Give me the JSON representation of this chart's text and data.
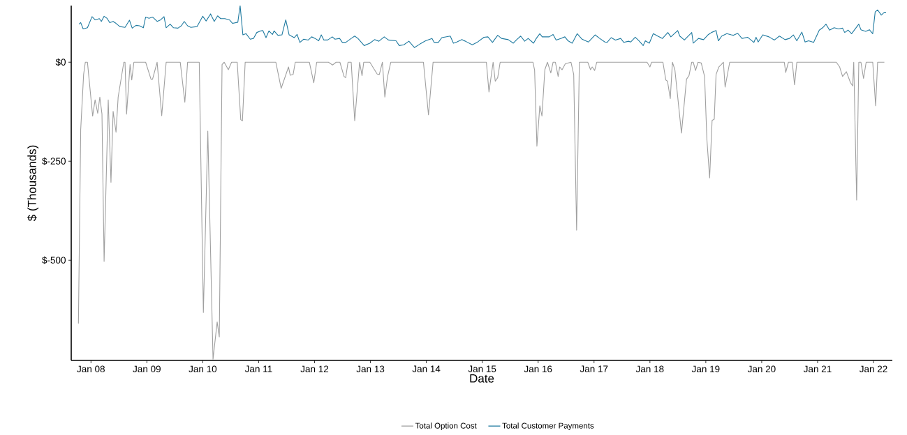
{
  "chart_data": {
    "type": "line",
    "xlabel": "Date",
    "ylabel": "$ (Thousands)",
    "legend": "bottom",
    "xlim": [
      "2007-08-25",
      "2022-05-04"
    ],
    "ylim": [
      -753,
      143
    ],
    "xticks": [
      {
        "value": "2008-01-01",
        "label": "Jan 08"
      },
      {
        "value": "2009-01-01",
        "label": "Jan 09"
      },
      {
        "value": "2010-01-01",
        "label": "Jan 10"
      },
      {
        "value": "2011-01-01",
        "label": "Jan 11"
      },
      {
        "value": "2012-01-01",
        "label": "Jan 12"
      },
      {
        "value": "2013-01-01",
        "label": "Jan 13"
      },
      {
        "value": "2014-01-01",
        "label": "Jan 14"
      },
      {
        "value": "2015-01-01",
        "label": "Jan 15"
      },
      {
        "value": "2016-01-01",
        "label": "Jan 16"
      },
      {
        "value": "2017-01-01",
        "label": "Jan 17"
      },
      {
        "value": "2018-01-01",
        "label": "Jan 18"
      },
      {
        "value": "2019-01-01",
        "label": "Jan 19"
      },
      {
        "value": "2020-01-01",
        "label": "Jan 20"
      },
      {
        "value": "2021-01-01",
        "label": "Jan 21"
      },
      {
        "value": "2022-01-01",
        "label": "Jan 22"
      }
    ],
    "yticks": [
      {
        "value": 0,
        "label": "$0"
      },
      {
        "value": -250,
        "label": "$-250"
      },
      {
        "value": -500,
        "label": "$-500"
      }
    ],
    "series": [
      {
        "name": "Total Option Cost",
        "color": "#a0a0a0",
        "x": [
          "2007-10-11",
          "2007-10-26",
          "2007-11-14",
          "2007-11-25",
          "2007-12-09",
          "2008-01-12",
          "2008-01-28",
          "2008-02-14",
          "2008-02-28",
          "2008-03-13",
          "2008-03-27",
          "2008-04-23",
          "2008-05-11",
          "2008-05-25",
          "2008-06-13",
          "2008-06-27",
          "2008-08-03",
          "2008-08-11",
          "2008-08-21",
          "2008-09-13",
          "2008-09-24",
          "2008-10-08",
          "2008-12-24",
          "2009-01-28",
          "2009-02-07",
          "2009-03-09",
          "2009-04-08",
          "2009-05-07",
          "2009-08-07",
          "2009-09-06",
          "2009-09-24",
          "2009-12-09",
          "2010-01-05",
          "2010-02-03",
          "2010-03-09",
          "2010-04-05",
          "2010-04-19",
          "2010-05-07",
          "2010-05-21",
          "2010-06-17",
          "2010-07-08",
          "2010-08-14",
          "2010-09-06",
          "2010-09-17",
          "2010-10-05",
          "2011-04-23",
          "2011-05-28",
          "2011-07-15",
          "2011-07-26",
          "2011-08-14",
          "2011-08-28",
          "2011-11-28",
          "2011-12-27",
          "2012-01-15",
          "2012-04-01",
          "2012-04-28",
          "2012-05-21",
          "2012-06-15",
          "2012-07-12",
          "2012-07-23",
          "2012-08-07",
          "2012-08-28",
          "2012-09-20",
          "2012-10-22",
          "2012-11-07",
          "2012-11-18",
          "2012-12-28",
          "2013-02-14",
          "2013-02-28",
          "2013-03-20",
          "2013-04-05",
          "2013-04-23",
          "2013-05-14",
          "2013-12-13",
          "2014-01-15",
          "2014-02-14",
          "2015-01-28",
          "2015-02-14",
          "2015-03-13",
          "2015-03-27",
          "2015-04-12",
          "2015-04-28",
          "2015-11-28",
          "2015-12-09",
          "2015-12-24",
          "2016-01-12",
          "2016-01-26",
          "2016-02-14",
          "2016-03-02",
          "2016-03-24",
          "2016-04-08",
          "2016-04-23",
          "2016-05-11",
          "2016-05-21",
          "2016-06-06",
          "2016-06-27",
          "2016-08-03",
          "2016-08-21",
          "2016-09-09",
          "2016-09-27",
          "2016-11-21",
          "2016-12-09",
          "2016-12-20",
          "2017-01-05",
          "2017-01-19",
          "2017-12-13",
          "2018-01-01",
          "2018-01-12",
          "2018-03-27",
          "2018-04-15",
          "2018-04-26",
          "2018-05-14",
          "2018-05-28",
          "2018-06-13",
          "2018-07-26",
          "2018-08-28",
          "2018-09-13",
          "2018-10-01",
          "2018-10-11",
          "2018-10-26",
          "2018-11-11",
          "2018-12-02",
          "2018-12-24",
          "2019-01-08",
          "2019-01-26",
          "2019-02-11",
          "2019-02-25",
          "2019-03-09",
          "2019-03-27",
          "2019-04-12",
          "2019-04-26",
          "2019-05-07",
          "2019-06-06",
          "2020-05-28",
          "2020-06-06",
          "2020-06-24",
          "2020-07-19",
          "2020-08-03",
          "2020-08-18",
          "2021-05-03",
          "2021-05-25",
          "2021-06-13",
          "2021-07-08",
          "2021-08-03",
          "2021-08-18",
          "2021-08-25",
          "2021-09-13",
          "2021-09-27",
          "2021-10-11",
          "2021-10-28",
          "2021-11-14",
          "2021-12-27",
          "2022-01-15",
          "2022-01-28",
          "2022-03-13"
        ],
        "values": [
          -660,
          -170,
          -31,
          0,
          0,
          -136,
          -95,
          -129,
          -88,
          -131,
          -503,
          -95,
          -303,
          -124,
          -177,
          -88,
          0,
          0,
          -131,
          -6,
          -45,
          0,
          0,
          -43,
          -43,
          0,
          -135,
          0,
          0,
          -101,
          0,
          0,
          -632,
          -174,
          -750,
          -656,
          -694,
          -6,
          0,
          -19,
          0,
          0,
          -145,
          -148,
          0,
          0,
          -66,
          -12,
          -33,
          -31,
          0,
          0,
          -52,
          0,
          0,
          -7,
          0,
          0,
          -36,
          -39,
          0,
          0,
          -148,
          0,
          -34,
          0,
          0,
          -30,
          -31,
          0,
          -88,
          -36,
          0,
          0,
          -133,
          0,
          0,
          -75,
          0,
          -48,
          -39,
          0,
          0,
          -20,
          -212,
          -110,
          -136,
          -19,
          0,
          -27,
          0,
          0,
          -36,
          -12,
          -19,
          -4,
          0,
          -31,
          -424,
          0,
          0,
          -19,
          -12,
          -21,
          0,
          0,
          -12,
          0,
          0,
          -45,
          -48,
          -92,
          0,
          -19,
          -179,
          -43,
          -34,
          0,
          0,
          -21,
          0,
          -2,
          -36,
          -195,
          -292,
          -147,
          -144,
          -31,
          -12,
          -6,
          0,
          -63,
          0,
          0,
          -26,
          0,
          0,
          -57,
          0,
          0,
          -12,
          -36,
          -24,
          -51,
          -60,
          0,
          -348,
          0,
          0,
          -41,
          0,
          0,
          -110,
          0,
          0
        ]
      },
      {
        "name": "Total Customer Payments",
        "color": "#1f7aa0",
        "x": [
          "2007-10-15",
          "2007-10-26",
          "2007-11-11",
          "2007-12-09",
          "2008-01-08",
          "2008-01-28",
          "2008-02-25",
          "2008-03-09",
          "2008-03-27",
          "2008-04-15",
          "2008-05-03",
          "2008-05-25",
          "2008-06-13",
          "2008-07-08",
          "2008-08-11",
          "2008-09-09",
          "2008-09-27",
          "2008-10-22",
          "2008-11-14",
          "2008-12-09",
          "2008-12-24",
          "2009-01-15",
          "2009-02-07",
          "2009-03-09",
          "2009-04-01",
          "2009-04-23",
          "2009-05-07",
          "2009-06-02",
          "2009-06-24",
          "2009-07-23",
          "2009-08-14",
          "2009-09-02",
          "2009-09-24",
          "2009-10-15",
          "2009-11-25",
          "2010-01-01",
          "2010-01-23",
          "2010-02-21",
          "2010-03-17",
          "2010-04-08",
          "2010-04-28",
          "2010-05-25",
          "2010-06-24",
          "2010-07-15",
          "2010-08-18",
          "2010-09-02",
          "2010-09-20",
          "2010-10-11",
          "2010-11-07",
          "2010-11-28",
          "2010-12-20",
          "2011-01-15",
          "2011-01-28",
          "2011-02-18",
          "2011-03-09",
          "2011-04-01",
          "2011-04-12",
          "2011-05-07",
          "2011-06-02",
          "2011-06-27",
          "2011-07-19",
          "2011-08-21",
          "2011-09-09",
          "2011-09-27",
          "2011-10-22",
          "2011-11-21",
          "2011-12-13",
          "2012-01-05",
          "2012-01-28",
          "2012-02-14",
          "2012-03-02",
          "2012-03-27",
          "2012-04-26",
          "2012-05-14",
          "2012-06-13",
          "2012-07-01",
          "2012-07-23",
          "2012-08-28",
          "2012-09-20",
          "2012-10-11",
          "2012-11-21",
          "2012-12-28",
          "2013-01-28",
          "2013-02-25",
          "2013-04-01",
          "2013-04-28",
          "2013-06-17",
          "2013-07-08",
          "2013-08-07",
          "2013-09-09",
          "2013-10-15",
          "2013-11-21",
          "2013-12-27",
          "2014-02-07",
          "2014-02-21",
          "2014-03-20",
          "2014-04-12",
          "2014-06-06",
          "2014-06-27",
          "2014-07-19",
          "2014-08-21",
          "2014-09-13",
          "2014-10-28",
          "2014-11-28",
          "2015-01-12",
          "2015-02-07",
          "2015-03-09",
          "2015-04-12",
          "2015-05-07",
          "2015-06-20",
          "2015-07-23",
          "2015-08-14",
          "2015-09-09",
          "2015-10-05",
          "2015-10-28",
          "2015-12-02",
          "2015-12-20",
          "2016-01-12",
          "2016-01-28",
          "2016-02-21",
          "2016-03-13",
          "2016-04-08",
          "2016-04-28",
          "2016-05-28",
          "2016-06-24",
          "2016-07-15",
          "2016-08-11",
          "2016-09-13",
          "2016-10-15",
          "2016-11-25",
          "2017-01-08",
          "2017-02-07",
          "2017-03-13",
          "2017-03-27",
          "2017-04-23",
          "2017-05-21",
          "2017-06-24",
          "2017-07-15",
          "2017-08-14",
          "2017-08-28",
          "2017-09-27",
          "2017-10-22",
          "2017-11-18",
          "2017-12-02",
          "2017-12-28",
          "2018-01-23",
          "2018-02-21",
          "2018-03-24",
          "2018-04-28",
          "2018-05-18",
          "2018-07-01",
          "2018-07-15",
          "2018-08-14",
          "2018-10-01",
          "2018-10-11",
          "2018-11-14",
          "2018-12-17",
          "2019-01-15",
          "2019-02-07",
          "2019-03-09",
          "2019-03-24",
          "2019-04-15",
          "2019-05-18",
          "2019-06-17",
          "2019-07-01",
          "2019-07-28",
          "2019-08-25",
          "2019-10-01",
          "2019-11-11",
          "2019-11-25",
          "2019-12-09",
          "2020-01-08",
          "2020-02-18",
          "2020-03-24",
          "2020-04-26",
          "2020-06-02",
          "2020-07-01",
          "2020-07-26",
          "2020-08-18",
          "2020-09-20",
          "2020-10-11",
          "2020-11-03",
          "2020-12-06",
          "2021-01-12",
          "2021-02-03",
          "2021-02-25",
          "2021-03-20",
          "2021-04-19",
          "2021-05-18",
          "2021-06-13",
          "2021-06-27",
          "2021-07-19",
          "2021-08-11",
          "2021-09-27",
          "2021-10-11",
          "2021-11-11",
          "2021-12-05",
          "2021-12-27",
          "2022-01-12",
          "2022-01-28",
          "2022-02-21",
          "2022-03-13",
          "2022-03-24"
        ],
        "values": [
          96,
          100,
          84,
          87,
          115,
          107,
          110,
          103,
          116,
          111,
          100,
          103,
          98,
          90,
          88,
          106,
          86,
          93,
          92,
          87,
          114,
          111,
          114,
          103,
          107,
          115,
          87,
          96,
          87,
          86,
          92,
          103,
          92,
          88,
          90,
          116,
          104,
          122,
          103,
          117,
          110,
          110,
          107,
          98,
          101,
          143,
          69,
          72,
          58,
          60,
          75,
          79,
          80,
          62,
          79,
          70,
          79,
          68,
          69,
          107,
          69,
          62,
          70,
          50,
          58,
          56,
          64,
          60,
          54,
          69,
          56,
          56,
          64,
          58,
          60,
          50,
          50,
          60,
          66,
          60,
          42,
          48,
          57,
          53,
          64,
          56,
          54,
          42,
          44,
          53,
          37,
          46,
          54,
          60,
          50,
          50,
          62,
          66,
          48,
          51,
          57,
          53,
          44,
          50,
          63,
          64,
          50,
          68,
          60,
          57,
          48,
          57,
          66,
          53,
          60,
          48,
          60,
          72,
          64,
          64,
          64,
          70,
          56,
          60,
          64,
          54,
          48,
          72,
          58,
          51,
          69,
          60,
          51,
          50,
          62,
          56,
          60,
          50,
          53,
          51,
          63,
          54,
          42,
          54,
          48,
          72,
          66,
          60,
          75,
          64,
          80,
          66,
          56,
          75,
          48,
          60,
          57,
          69,
          75,
          80,
          54,
          66,
          72,
          69,
          68,
          73,
          60,
          63,
          50,
          63,
          51,
          69,
          64,
          56,
          66,
          57,
          60,
          69,
          54,
          76,
          51,
          54,
          50,
          81,
          87,
          96,
          81,
          87,
          84,
          86,
          75,
          81,
          72,
          96,
          82,
          78,
          82,
          72,
          127,
          132,
          119,
          126,
          126
        ]
      }
    ]
  }
}
